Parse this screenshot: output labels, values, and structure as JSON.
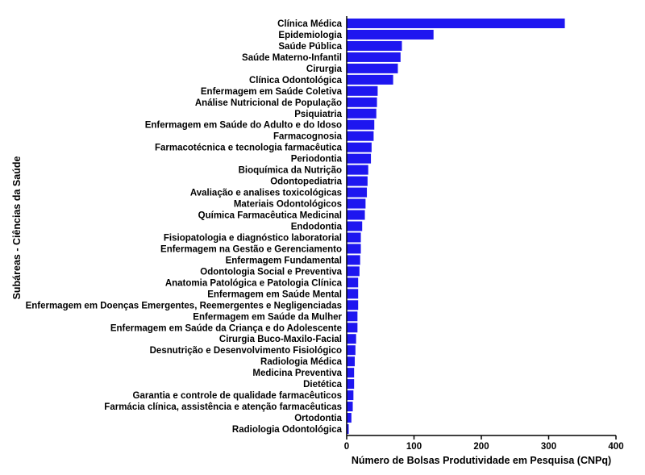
{
  "chart_data": {
    "type": "bar",
    "orientation": "horizontal",
    "title": "",
    "xlabel": "Número de Bolsas Produtividade em Pesquisa (CNPq)",
    "ylabel": "Subáreas - Ciências da Saúde",
    "xlim": [
      0,
      400
    ],
    "xticks": [
      "0",
      "100",
      "200",
      "300",
      "400"
    ],
    "grid": false,
    "bar_color": "#1e16f0",
    "categories": [
      "Clínica Médica",
      "Epidemiologia",
      "Saúde Pública",
      "Saúde Materno-Infantil",
      "Cirurgia",
      "Clínica Odontológica",
      "Enfermagem em Saúde Coletiva",
      "Análise Nutricional de População",
      "Psiquiatria",
      "Enfermagem em Saúde do Adulto e do Idoso",
      "Farmacognosia",
      "Farmacotécnica e tecnologia farmacêutica",
      "Periodontia",
      "Bioquímica da Nutrição",
      "Odontopediatria",
      "Avaliação e analises toxicológicas",
      "Materiais Odontológicos",
      "Química Farmacêutica Medicinal",
      "Endodontia",
      "Fisiopatologia e diagnóstico laboratorial",
      "Enfermagem na Gestão e Gerenciamento",
      "Enfermagem Fundamental",
      "Odontologia Social e Preventiva",
      "Anatomia Patológica e Patologia Clínica",
      "Enfermagem em Saúde Mental",
      "Enfermagem em Doenças Emergentes, Reemergentes e Negligenciadas",
      "Enfermagem em Saúde da Mulher",
      "Enfermagem em Saúde da Criança e do Adolescente",
      "Cirurgia Buco-Maxilo-Facial",
      "Desnutrição e Desenvolvimento Fisiológico",
      "Radiologia Médica",
      "Medicina Preventiva",
      "Dietética",
      "Garantia e controle de qualidade farmacêuticos",
      "Farmácia clínica, assistência e atenção farmacêuticas",
      "Ortodontia",
      "Radiologia Odontológica"
    ],
    "values": [
      324,
      129,
      82,
      80,
      76,
      69,
      46,
      45,
      44,
      41,
      40,
      37,
      36,
      32,
      31,
      30,
      28,
      27,
      23,
      21,
      21,
      20,
      19,
      17,
      17,
      17,
      16,
      16,
      14,
      13,
      12,
      11,
      11,
      10,
      9,
      7,
      3
    ]
  }
}
